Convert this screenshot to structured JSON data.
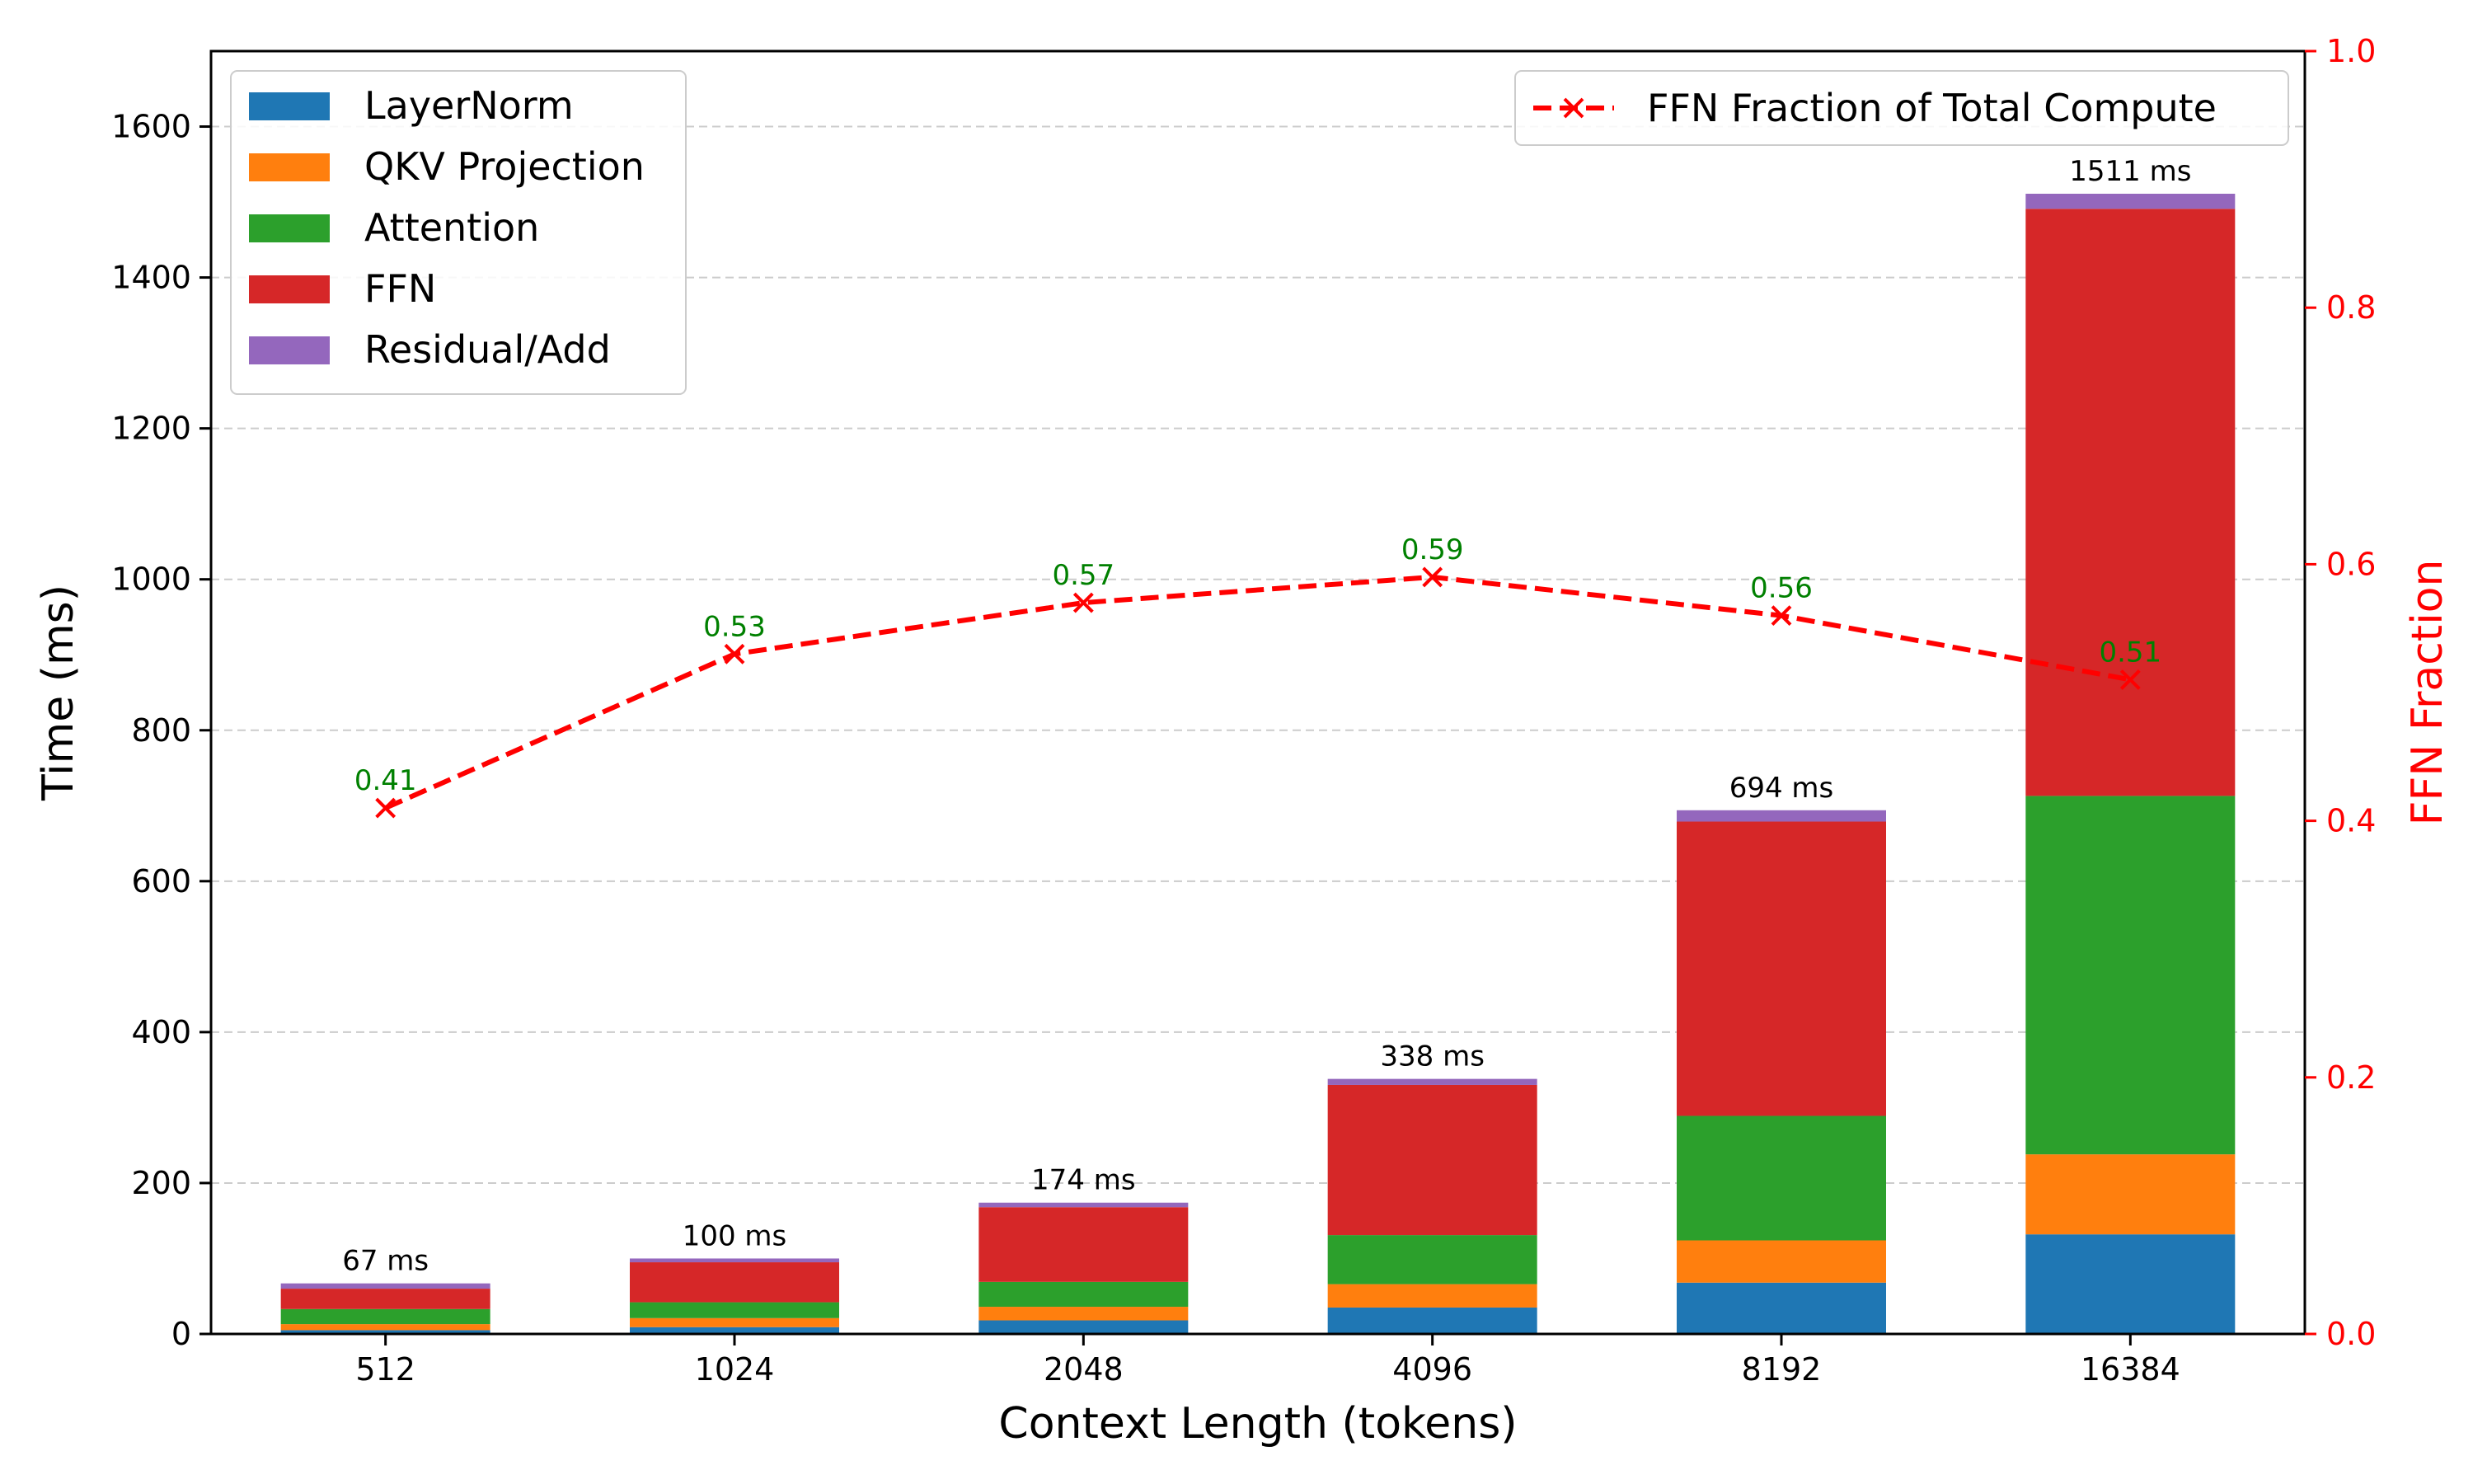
{
  "chart_data": {
    "type": "bar",
    "stacked": true,
    "categories": [
      "512",
      "1024",
      "2048",
      "4096",
      "8192",
      "16384"
    ],
    "series": [
      {
        "name": "LayerNorm",
        "color": "#1f77b4",
        "values": [
          5,
          9,
          18,
          35,
          68,
          132
        ]
      },
      {
        "name": "QKV Projection",
        "color": "#ff7f0e",
        "values": [
          8,
          12,
          18,
          31,
          56,
          106
        ]
      },
      {
        "name": "Attention",
        "color": "#2ca02c",
        "values": [
          20,
          21,
          33,
          65,
          165,
          475
        ]
      },
      {
        "name": "FFN",
        "color": "#d62728",
        "values": [
          27,
          53,
          99,
          199,
          390,
          778
        ]
      },
      {
        "name": "Residual/Add",
        "color": "#9467bd",
        "values": [
          7,
          5,
          6,
          8,
          15,
          20
        ]
      }
    ],
    "totals": [
      67,
      100,
      174,
      338,
      694,
      1511
    ],
    "total_labels": [
      "67 ms",
      "100 ms",
      "174 ms",
      "338 ms",
      "694 ms",
      "1511 ms"
    ],
    "secondary_series": {
      "name": "FFN Fraction of Total Compute",
      "type": "line",
      "color": "#ff0000",
      "line_style": "dashed",
      "marker": "x",
      "values": [
        0.41,
        0.53,
        0.57,
        0.59,
        0.56,
        0.51
      ],
      "value_labels": [
        "0.41",
        "0.53",
        "0.57",
        "0.59",
        "0.56",
        "0.51"
      ],
      "label_color": "#008000"
    },
    "xlabel": "Context Length (tokens)",
    "ylabel": "Time (ms)",
    "y2label": "FFN Fraction",
    "ylim": [
      0,
      1700
    ],
    "yticks": [
      0,
      200,
      400,
      600,
      800,
      1000,
      1200,
      1400,
      1600
    ],
    "y2lim": [
      0,
      1.0
    ],
    "y2ticks": [
      0.0,
      0.2,
      0.4,
      0.6,
      0.8,
      1.0
    ],
    "y2tick_labels": [
      "0.0",
      "0.2",
      "0.4",
      "0.6",
      "0.8",
      "1.0"
    ],
    "grid": "horizontal dashed",
    "legend_primary": "top-left",
    "legend_secondary": "top-right"
  }
}
